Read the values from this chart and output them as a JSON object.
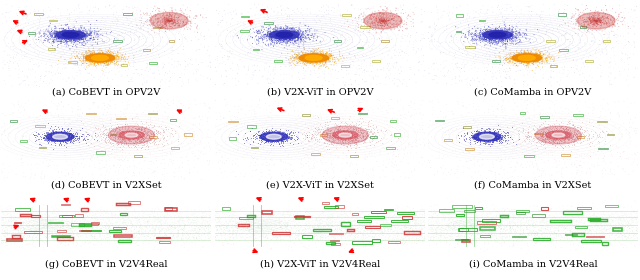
{
  "captions": [
    "(a) CoBEVT in OPV2V",
    "(b) V2X-ViT in OPV2V",
    "(c) CoMamba in OPV2V",
    "(d) CoBEVT in V2XSet",
    "(e) V2X-ViT in V2XSet",
    "(f) CoMamba in V2XSet",
    "(g) CoBEVT in V2V4Real",
    "(h) V2X-ViT in V2V4Real",
    "(i) CoMamba in V2V4Real"
  ],
  "caption_fontsize": 7.0,
  "bg_color": "#ffffff",
  "nrows": 3,
  "ncols": 3
}
